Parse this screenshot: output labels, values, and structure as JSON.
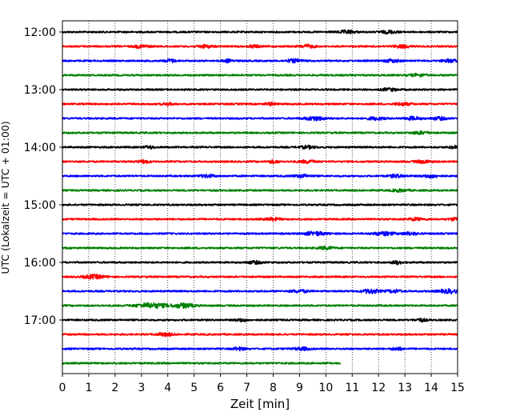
{
  "chart_data": {
    "type": "line",
    "title": "",
    "xlabel": "Zeit  [min]",
    "ylabel": "UTC (Lokalzeit = UTC + 01:00)",
    "xlim": [
      0,
      15
    ],
    "x_ticks": [
      0,
      1,
      2,
      3,
      4,
      5,
      6,
      7,
      8,
      9,
      10,
      11,
      12,
      13,
      14,
      15
    ],
    "x_tick_labels": [
      "0",
      "1",
      "2",
      "3",
      "4",
      "5",
      "6",
      "7",
      "8",
      "9",
      "10",
      "11",
      "12",
      "13",
      "14",
      "15"
    ],
    "y_tick_labels": [
      "12:00",
      "13:00",
      "14:00",
      "15:00",
      "16:00",
      "17:00"
    ],
    "grid": "vertical dotted",
    "trace_colors": [
      "#000000",
      "#ff0000",
      "#0000ff",
      "#008000"
    ],
    "traces": [
      {
        "start": "12:00",
        "color": "#000000",
        "end_min": 15,
        "bursts": [
          [
            10.8,
            1.8,
            0.3
          ],
          [
            12.4,
            1.6,
            0.3
          ]
        ]
      },
      {
        "start": "12:15",
        "color": "#ff0000",
        "end_min": 15,
        "bursts": [
          [
            3.0,
            1.6,
            0.3
          ],
          [
            5.4,
            1.6,
            0.3
          ],
          [
            7.3,
            1.5,
            0.2
          ],
          [
            9.3,
            1.7,
            0.3
          ],
          [
            12.9,
            1.6,
            0.3
          ]
        ]
      },
      {
        "start": "12:30",
        "color": "#0000ff",
        "end_min": 15,
        "bursts": [
          [
            4.1,
            1.8,
            0.2
          ],
          [
            6.3,
            1.6,
            0.2
          ],
          [
            8.8,
            1.8,
            0.3
          ],
          [
            12.5,
            1.7,
            0.3
          ],
          [
            14.7,
            1.6,
            0.3
          ]
        ]
      },
      {
        "start": "12:45",
        "color": "#008000",
        "end_min": 15,
        "bursts": [
          [
            13.5,
            1.5,
            0.3
          ]
        ]
      },
      {
        "start": "13:00",
        "color": "#000000",
        "end_min": 15,
        "bursts": [
          [
            12.4,
            1.5,
            0.3
          ]
        ]
      },
      {
        "start": "13:15",
        "color": "#ff0000",
        "end_min": 15,
        "bursts": [
          [
            4.0,
            1.5,
            0.2
          ],
          [
            7.9,
            1.5,
            0.2
          ],
          [
            12.9,
            1.6,
            0.3
          ]
        ]
      },
      {
        "start": "13:30",
        "color": "#0000ff",
        "end_min": 15,
        "bursts": [
          [
            9.6,
            2.2,
            0.4
          ],
          [
            11.9,
            1.7,
            0.3
          ],
          [
            13.3,
            1.8,
            0.3
          ],
          [
            14.3,
            1.6,
            0.3
          ]
        ]
      },
      {
        "start": "13:45",
        "color": "#008000",
        "end_min": 15,
        "bursts": [
          [
            13.6,
            1.6,
            0.3
          ]
        ]
      },
      {
        "start": "14:00",
        "color": "#000000",
        "end_min": 15,
        "bursts": [
          [
            3.3,
            1.6,
            0.2
          ],
          [
            9.3,
            1.5,
            0.3
          ],
          [
            14.9,
            1.6,
            0.2
          ]
        ]
      },
      {
        "start": "14:15",
        "color": "#ff0000",
        "end_min": 15,
        "bursts": [
          [
            3.1,
            1.8,
            0.2
          ],
          [
            8.0,
            1.5,
            0.2
          ],
          [
            9.3,
            1.7,
            0.3
          ],
          [
            13.7,
            1.6,
            0.3
          ]
        ]
      },
      {
        "start": "14:30",
        "color": "#0000ff",
        "end_min": 15,
        "bursts": [
          [
            5.5,
            1.6,
            0.3
          ],
          [
            9.1,
            1.6,
            0.3
          ],
          [
            12.7,
            1.7,
            0.3
          ],
          [
            14.0,
            1.8,
            0.3
          ]
        ]
      },
      {
        "start": "14:45",
        "color": "#008000",
        "end_min": 15,
        "bursts": [
          [
            12.8,
            1.4,
            0.3
          ]
        ]
      },
      {
        "start": "15:00",
        "color": "#000000",
        "end_min": 15,
        "bursts": []
      },
      {
        "start": "15:15",
        "color": "#ff0000",
        "end_min": 15,
        "bursts": [
          [
            8.0,
            1.5,
            0.3
          ],
          [
            13.4,
            1.5,
            0.3
          ],
          [
            14.9,
            1.6,
            0.2
          ]
        ]
      },
      {
        "start": "15:30",
        "color": "#0000ff",
        "end_min": 15,
        "bursts": [
          [
            9.6,
            2.2,
            0.4
          ],
          [
            12.2,
            2.0,
            0.4
          ],
          [
            13.2,
            1.6,
            0.3
          ]
        ]
      },
      {
        "start": "15:45",
        "color": "#008000",
        "end_min": 15,
        "bursts": [
          [
            10.0,
            1.5,
            0.3
          ]
        ]
      },
      {
        "start": "16:00",
        "color": "#000000",
        "end_min": 15,
        "bursts": [
          [
            7.3,
            1.5,
            0.3
          ],
          [
            12.7,
            1.8,
            0.2
          ]
        ]
      },
      {
        "start": "16:15",
        "color": "#ff0000",
        "end_min": 15,
        "bursts": [
          [
            1.2,
            2.2,
            0.4
          ]
        ]
      },
      {
        "start": "16:30",
        "color": "#0000ff",
        "end_min": 15,
        "bursts": [
          [
            9.0,
            1.6,
            0.3
          ],
          [
            11.7,
            2.5,
            0.3
          ],
          [
            12.6,
            1.6,
            0.3
          ],
          [
            14.7,
            2.2,
            0.4
          ]
        ]
      },
      {
        "start": "16:45",
        "color": "#008000",
        "end_min": 15,
        "bursts": [
          [
            3.4,
            2.8,
            0.6
          ],
          [
            4.6,
            2.4,
            0.4
          ]
        ]
      },
      {
        "start": "17:00",
        "color": "#000000",
        "end_min": 15,
        "bursts": [
          [
            6.8,
            1.7,
            0.2
          ],
          [
            13.6,
            1.8,
            0.2
          ]
        ]
      },
      {
        "start": "17:15",
        "color": "#ff0000",
        "end_min": 15,
        "bursts": [
          [
            3.9,
            1.8,
            0.3
          ]
        ]
      },
      {
        "start": "17:30",
        "color": "#0000ff",
        "end_min": 15,
        "bursts": [
          [
            6.7,
            1.8,
            0.2
          ],
          [
            9.1,
            1.6,
            0.3
          ],
          [
            12.7,
            1.8,
            0.2
          ]
        ]
      },
      {
        "start": "17:45",
        "color": "#008000",
        "end_min": 10.55,
        "bursts": []
      }
    ]
  }
}
